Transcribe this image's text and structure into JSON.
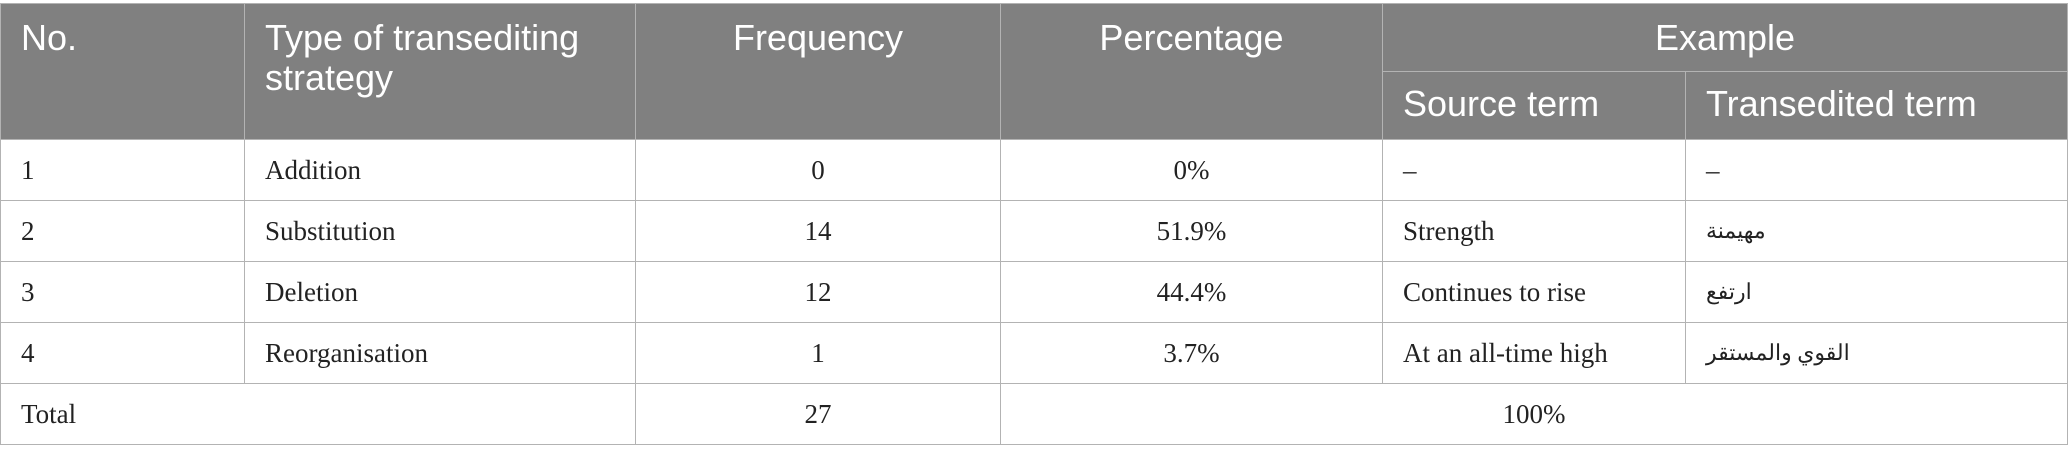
{
  "table": {
    "headers": {
      "no": "No.",
      "type": "Type of transediting strategy",
      "frequency": "Frequency",
      "percentage": "Percentage",
      "example": "Example",
      "source_term": "Source term",
      "transedited_term": "Transedited term"
    },
    "rows": [
      {
        "no": "1",
        "type": "Addition",
        "frequency": "0",
        "percentage": "0%",
        "source": "–",
        "target": "–"
      },
      {
        "no": "2",
        "type": "Substitution",
        "frequency": "14",
        "percentage": "51.9%",
        "source": "Strength",
        "target": "مهيمنة"
      },
      {
        "no": "3",
        "type": "Deletion",
        "frequency": "12",
        "percentage": "44.4%",
        "source": "Continues to rise",
        "target": "ارتفع"
      },
      {
        "no": "4",
        "type": "Reorganisation",
        "frequency": "1",
        "percentage": "3.7%",
        "source": "At an all-time high",
        "target": "القوي والمستقر"
      }
    ],
    "total": {
      "label": "Total",
      "frequency": "27",
      "percentage": "100%"
    }
  }
}
